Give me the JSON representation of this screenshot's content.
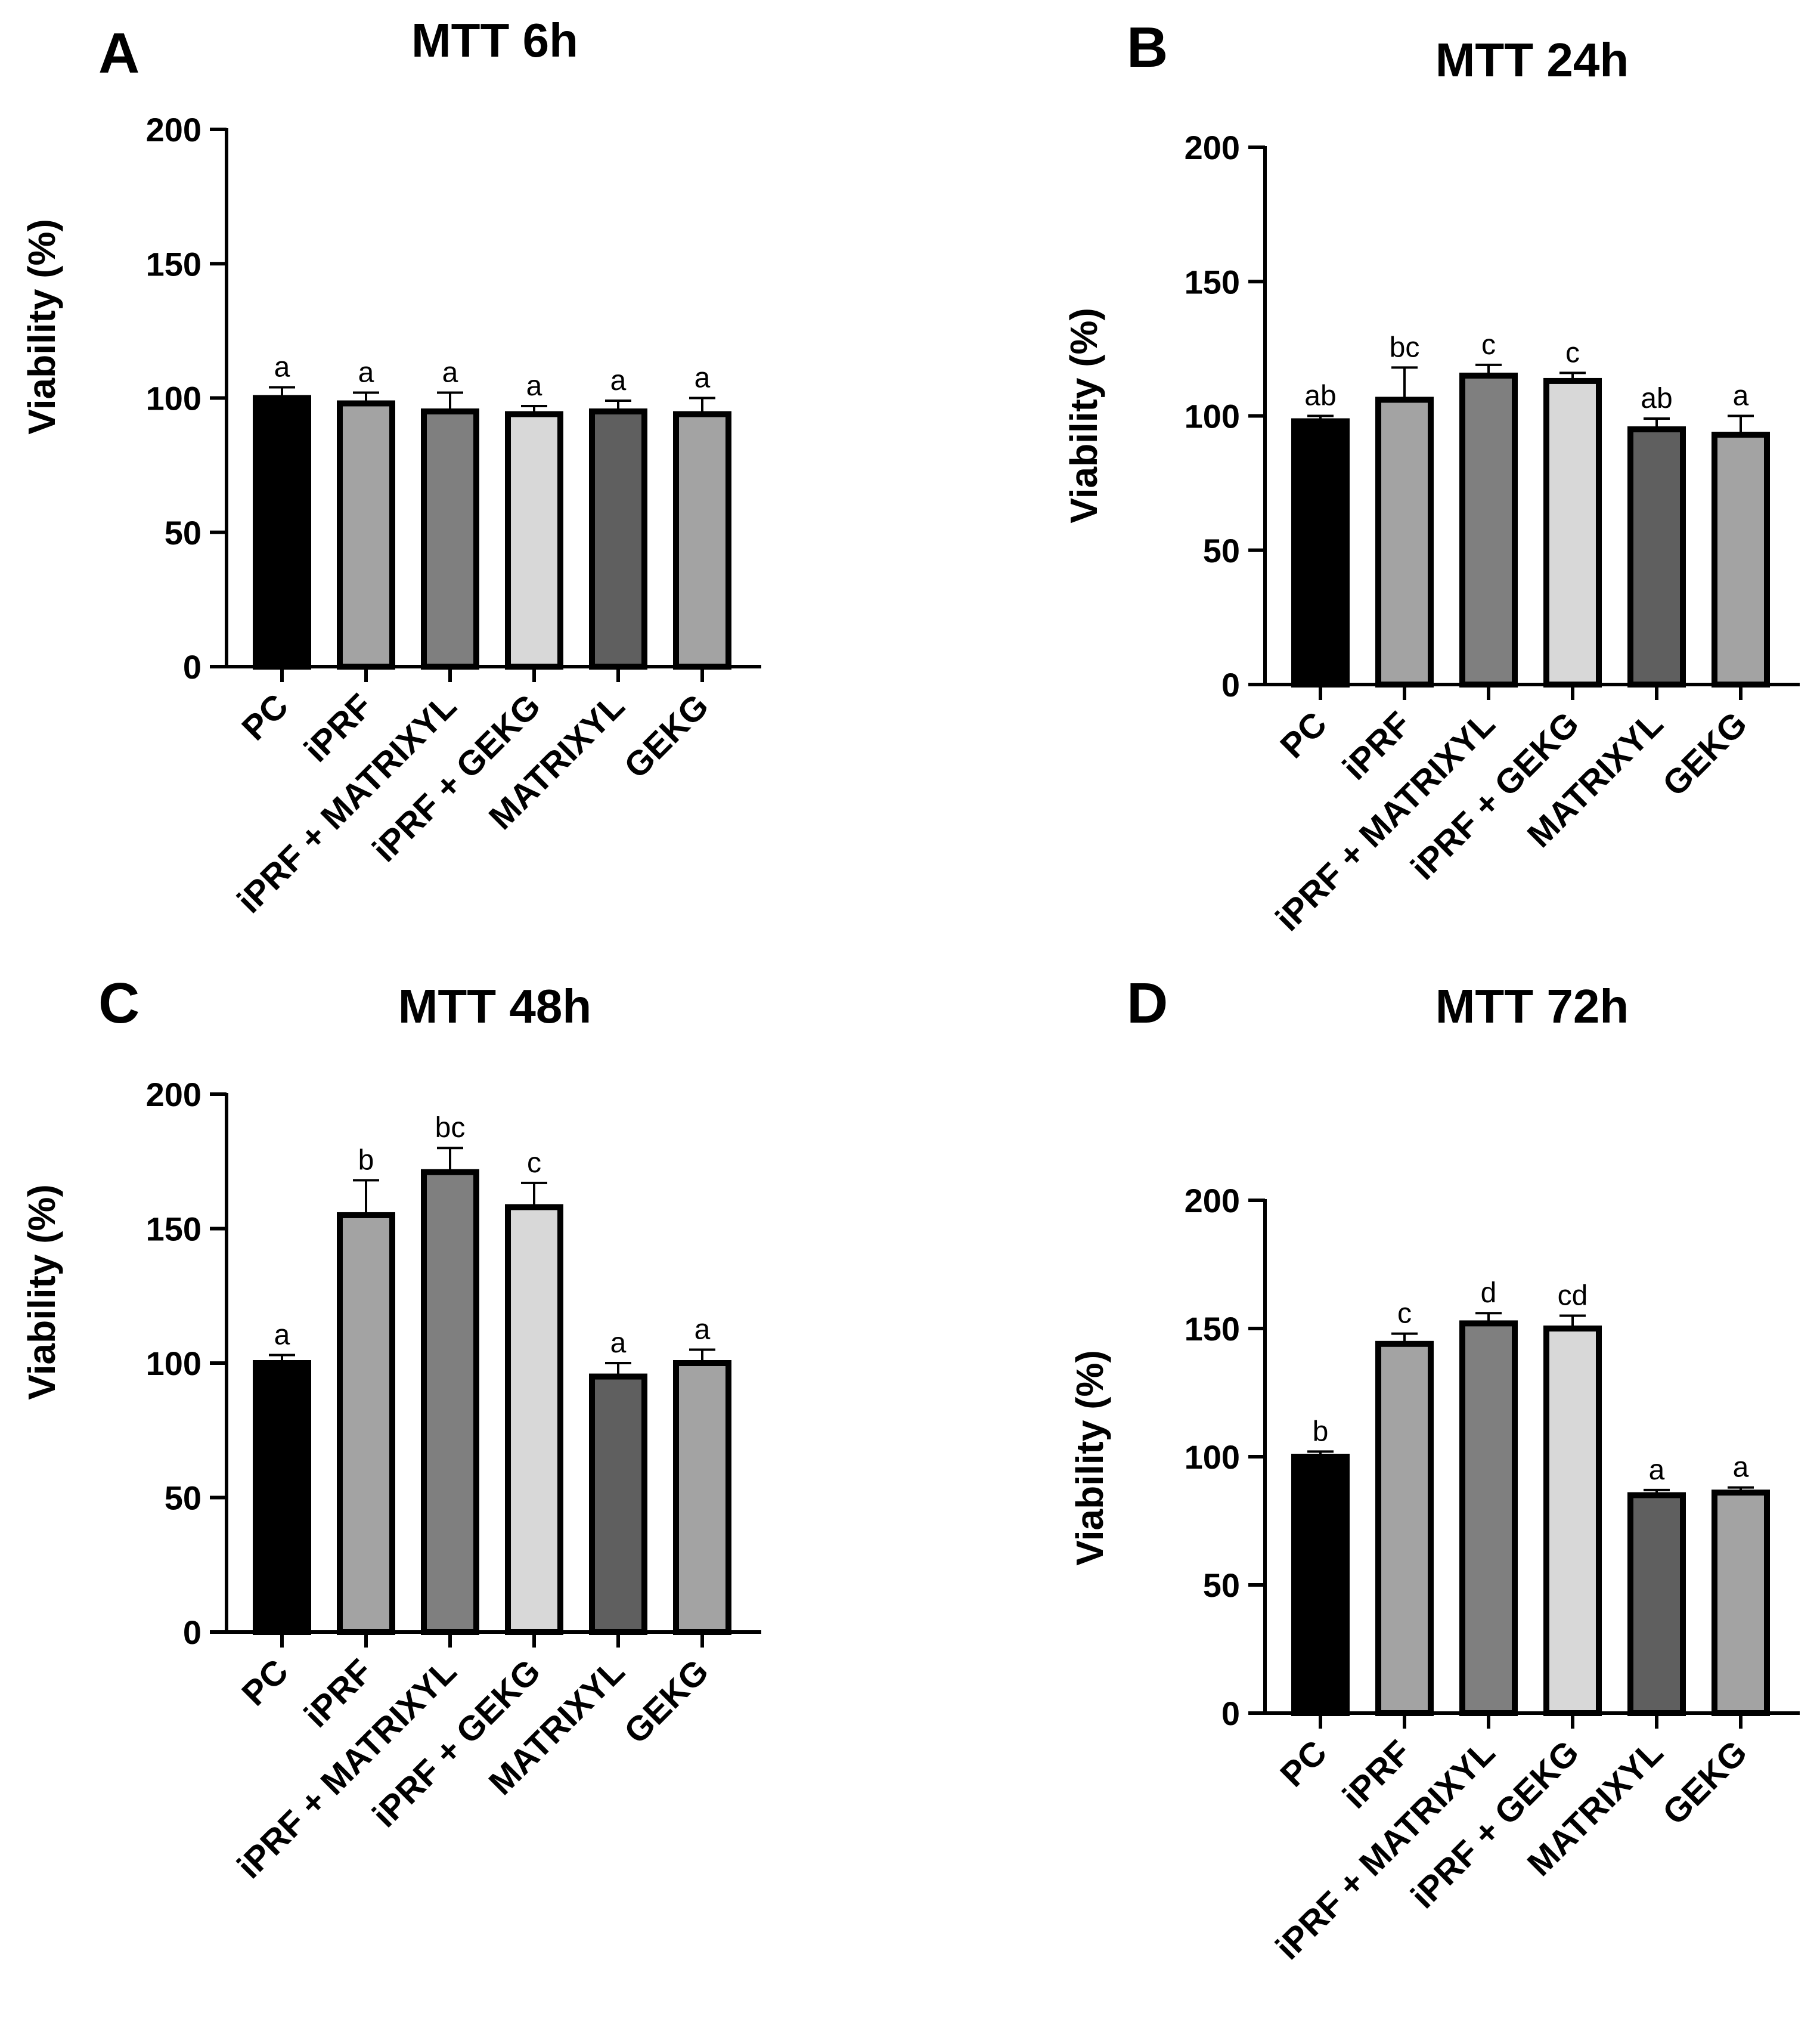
{
  "chart_data": [
    {
      "panel": "A",
      "type": "bar",
      "title": "MTT 6h",
      "ylabel": "Viability (%)",
      "xlabel": "",
      "ylim": [
        0,
        200
      ],
      "yticks": [
        0,
        50,
        100,
        150,
        200
      ],
      "categories": [
        "PC",
        "iPRF",
        "iPRF + MATRIXYL",
        "iPRF + GEKG",
        "MATRIXYL",
        "GEKG"
      ],
      "values": [
        100,
        98,
        95,
        94,
        95,
        94
      ],
      "errors": [
        4,
        4,
        7,
        3,
        4,
        6
      ],
      "significance": [
        "a",
        "a",
        "a",
        "a",
        "a",
        "a"
      ],
      "colors": [
        "#000000",
        "#a3a3a3",
        "#7f7f7f",
        "#d8d8d8",
        "#5f5f5f",
        "#a3a3a3"
      ]
    },
    {
      "panel": "B",
      "type": "bar",
      "title": "MTT 24h",
      "ylabel": "Viability (%)",
      "xlabel": "",
      "ylim": [
        0,
        200
      ],
      "yticks": [
        0,
        50,
        100,
        150,
        200
      ],
      "categories": [
        "PC",
        "iPRF",
        "iPRF + MATRIXYL",
        "iPRF + GEKG",
        "MATRIXYL",
        "GEKG"
      ],
      "values": [
        98,
        106,
        115,
        113,
        95,
        93
      ],
      "errors": [
        2,
        12,
        4,
        3,
        4,
        7
      ],
      "significance": [
        "ab",
        "bc",
        "c",
        "c",
        "ab",
        "a"
      ],
      "colors": [
        "#000000",
        "#a3a3a3",
        "#7f7f7f",
        "#d8d8d8",
        "#5f5f5f",
        "#a3a3a3"
      ]
    },
    {
      "panel": "C",
      "type": "bar",
      "title": "MTT 48h",
      "ylabel": "Viability (%)",
      "xlabel": "",
      "ylim": [
        0,
        200
      ],
      "yticks": [
        0,
        50,
        100,
        150,
        200
      ],
      "categories": [
        "PC",
        "iPRF",
        "iPRF + MATRIXYL",
        "iPRF + GEKG",
        "MATRIXYL",
        "GEKG"
      ],
      "values": [
        100,
        155,
        171,
        158,
        95,
        100
      ],
      "errors": [
        3,
        13,
        9,
        9,
        5,
        5
      ],
      "significance": [
        "a",
        "b",
        "bc",
        "c",
        "a",
        "a"
      ],
      "colors": [
        "#000000",
        "#a3a3a3",
        "#7f7f7f",
        "#d8d8d8",
        "#5f5f5f",
        "#a3a3a3"
      ]
    },
    {
      "panel": "D",
      "type": "bar",
      "title": "MTT 72h",
      "ylabel": "Viability (%)",
      "xlabel": "",
      "ylim": [
        0,
        200
      ],
      "yticks": [
        0,
        50,
        100,
        150,
        200
      ],
      "categories": [
        "PC",
        "iPRF",
        "iPRF + MATRIXYL",
        "iPRF + GEKG",
        "MATRIXYL",
        "GEKG"
      ],
      "values": [
        100,
        144,
        152,
        150,
        85,
        86
      ],
      "errors": [
        2,
        4,
        4,
        5,
        2,
        2
      ],
      "significance": [
        "b",
        "c",
        "d",
        "cd",
        "a",
        "a"
      ],
      "colors": [
        "#000000",
        "#a3a3a3",
        "#7f7f7f",
        "#d8d8d8",
        "#5f5f5f",
        "#a3a3a3"
      ]
    }
  ]
}
